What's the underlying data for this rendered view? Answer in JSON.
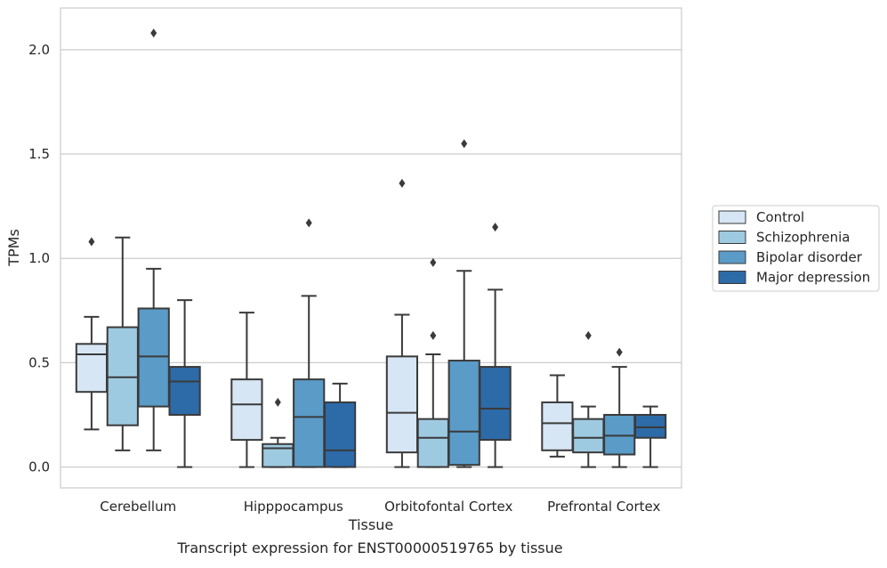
{
  "caption": "Transcript expression for ENST00000519765 by tissue",
  "chart_data": {
    "type": "boxplot",
    "xlabel": "Tissue",
    "ylabel": "TPMs",
    "ylim": [
      -0.1,
      2.2
    ],
    "yticks": [
      0.0,
      0.5,
      1.0,
      1.5,
      2.0
    ],
    "ytick_labels": [
      "0.0",
      "0.5",
      "1.0",
      "1.5",
      "2.0"
    ],
    "categories": [
      "Cerebellum",
      "Hipppocampus",
      "Orbitofontal Cortex",
      "Prefrontal Cortex"
    ],
    "grid": "horizontal",
    "legend_position": "right",
    "series": [
      {
        "name": "Control",
        "color": "#d6e6f4",
        "boxes": [
          {
            "whisker_low": 0.18,
            "q1": 0.36,
            "median": 0.54,
            "q3": 0.59,
            "whisker_high": 0.72,
            "outliers": [
              1.08
            ]
          },
          {
            "whisker_low": 0.0,
            "q1": 0.13,
            "median": 0.3,
            "q3": 0.42,
            "whisker_high": 0.74,
            "outliers": []
          },
          {
            "whisker_low": 0.0,
            "q1": 0.07,
            "median": 0.26,
            "q3": 0.53,
            "whisker_high": 0.73,
            "outliers": [
              1.36
            ]
          },
          {
            "whisker_low": 0.05,
            "q1": 0.08,
            "median": 0.21,
            "q3": 0.31,
            "whisker_high": 0.44,
            "outliers": []
          }
        ]
      },
      {
        "name": "Schizophrenia",
        "color": "#9ecae1",
        "boxes": [
          {
            "whisker_low": 0.08,
            "q1": 0.2,
            "median": 0.43,
            "q3": 0.67,
            "whisker_high": 1.1,
            "outliers": []
          },
          {
            "whisker_low": 0.0,
            "q1": 0.0,
            "median": 0.09,
            "q3": 0.11,
            "whisker_high": 0.14,
            "outliers": [
              0.31
            ]
          },
          {
            "whisker_low": 0.0,
            "q1": 0.0,
            "median": 0.14,
            "q3": 0.23,
            "whisker_high": 0.54,
            "outliers": [
              0.63,
              0.98
            ]
          },
          {
            "whisker_low": 0.0,
            "q1": 0.07,
            "median": 0.14,
            "q3": 0.23,
            "whisker_high": 0.29,
            "outliers": [
              0.63
            ]
          }
        ]
      },
      {
        "name": "Bipolar disorder",
        "color": "#5a9bc8",
        "boxes": [
          {
            "whisker_low": 0.08,
            "q1": 0.29,
            "median": 0.53,
            "q3": 0.76,
            "whisker_high": 0.95,
            "outliers": [
              2.08
            ]
          },
          {
            "whisker_low": 0.0,
            "q1": 0.0,
            "median": 0.24,
            "q3": 0.42,
            "whisker_high": 0.82,
            "outliers": [
              1.17
            ]
          },
          {
            "whisker_low": 0.0,
            "q1": 0.01,
            "median": 0.17,
            "q3": 0.51,
            "whisker_high": 0.94,
            "outliers": [
              1.55
            ]
          },
          {
            "whisker_low": 0.0,
            "q1": 0.06,
            "median": 0.15,
            "q3": 0.25,
            "whisker_high": 0.48,
            "outliers": [
              0.55
            ]
          }
        ]
      },
      {
        "name": "Major depression",
        "color": "#2d6aa8",
        "boxes": [
          {
            "whisker_low": 0.0,
            "q1": 0.25,
            "median": 0.41,
            "q3": 0.48,
            "whisker_high": 0.8,
            "outliers": []
          },
          {
            "whisker_low": 0.0,
            "q1": 0.0,
            "median": 0.08,
            "q3": 0.31,
            "whisker_high": 0.4,
            "outliers": []
          },
          {
            "whisker_low": 0.0,
            "q1": 0.13,
            "median": 0.28,
            "q3": 0.48,
            "whisker_high": 0.85,
            "outliers": [
              1.15
            ]
          },
          {
            "whisker_low": 0.0,
            "q1": 0.14,
            "median": 0.19,
            "q3": 0.25,
            "whisker_high": 0.29,
            "outliers": []
          }
        ]
      }
    ]
  }
}
